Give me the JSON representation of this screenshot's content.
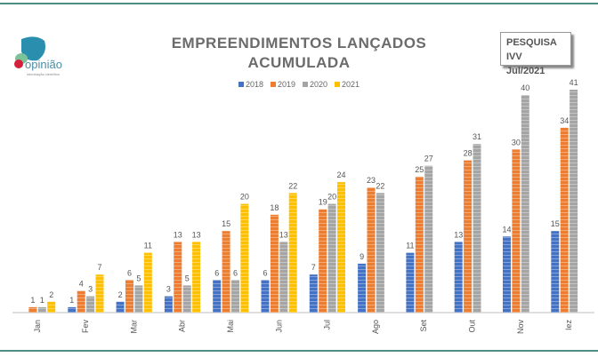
{
  "logo": {
    "text": "opinião",
    "subtitle": "informação científica"
  },
  "badge": {
    "line1": "PESQUISA IVV",
    "line2": "Jul/2021"
  },
  "chart_data": {
    "type": "bar",
    "title_line1": "EMPREENDIMENTOS LANÇADOS",
    "title_line2": "ACUMULADA",
    "categories": [
      "Jan",
      "Fev",
      "Mar",
      "Abr",
      "Mai",
      "Jun",
      "Jul",
      "Ago",
      "Set",
      "Out",
      "Nov",
      "Dez"
    ],
    "category_labels": [
      "Jan",
      "Fev",
      "Mar",
      "Abr",
      "Mai",
      "Jun",
      "Jul",
      "Ago",
      "Set",
      "Out",
      "Nov",
      "Iez"
    ],
    "series": [
      {
        "name": "2018",
        "color": "#4472c4",
        "values": [
          null,
          1,
          2,
          3,
          6,
          6,
          7,
          9,
          11,
          13,
          14,
          15
        ]
      },
      {
        "name": "2019",
        "color": "#ed7d31",
        "values": [
          1,
          4,
          6,
          13,
          15,
          18,
          19,
          23,
          25,
          28,
          30,
          34
        ]
      },
      {
        "name": "2020",
        "color": "#a5a5a5",
        "values": [
          1,
          3,
          5,
          5,
          6,
          13,
          20,
          22,
          27,
          31,
          40,
          41
        ]
      },
      {
        "name": "2021",
        "color": "#ffc000",
        "values": [
          2,
          7,
          11,
          13,
          20,
          22,
          24,
          null,
          null,
          null,
          null,
          null
        ]
      }
    ],
    "ylim": [
      0,
      41
    ],
    "grid": false,
    "legend_placement": "top-center",
    "xlabel": "",
    "ylabel": ""
  }
}
